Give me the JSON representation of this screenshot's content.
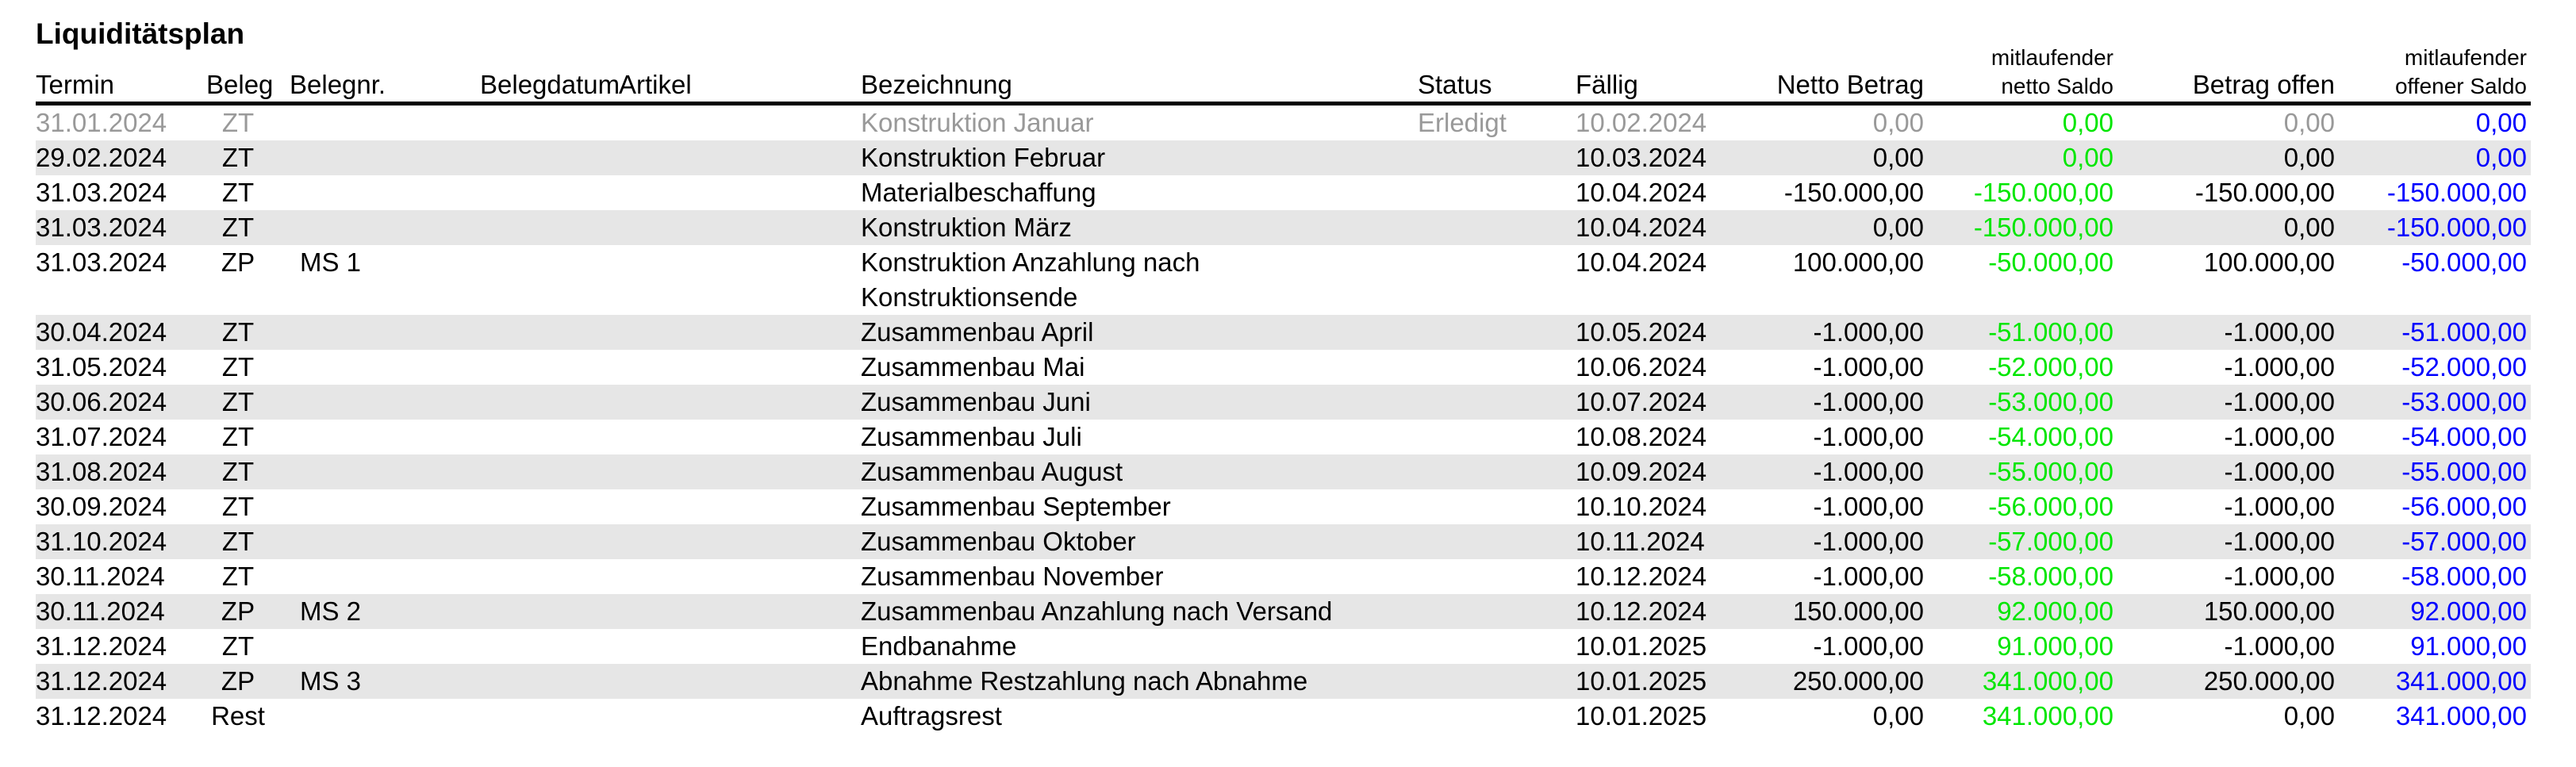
{
  "title": "Liquiditätsplan",
  "colors": {
    "running_net_balance": "#00e600",
    "running_open_balance": "#0000ff",
    "completed_row": "#999999",
    "alt_row_bg": "#e6e6e6"
  },
  "columns": {
    "termin": "Termin",
    "beleg": "Beleg",
    "belegnr": "Belegnr.",
    "belegdatum": "Belegdatum",
    "artikel": "Artikel",
    "bezeichnung": "Bezeichnung",
    "status": "Status",
    "faellig": "Fällig",
    "netto_betrag": "Netto Betrag",
    "netto_saldo_1": "mitlaufender",
    "netto_saldo_2": "netto Saldo",
    "betrag_offen": "Betrag offen",
    "offener_saldo_1": "mitlaufender",
    "offener_saldo_2": "offener Saldo"
  },
  "rows": [
    {
      "termin": "31.01.2024",
      "beleg": "ZT",
      "belegnr": "",
      "bezeichnung": "Konstruktion Januar",
      "status": "Erledigt",
      "faellig": "10.02.2024",
      "netto": "0,00",
      "netto_saldo": "0,00",
      "offen": "0,00",
      "offen_saldo": "0,00"
    },
    {
      "termin": "29.02.2024",
      "beleg": "ZT",
      "belegnr": "",
      "bezeichnung": "Konstruktion Februar",
      "status": "",
      "faellig": "10.03.2024",
      "netto": "0,00",
      "netto_saldo": "0,00",
      "offen": "0,00",
      "offen_saldo": "0,00"
    },
    {
      "termin": "31.03.2024",
      "beleg": "ZT",
      "belegnr": "",
      "bezeichnung": "Materialbeschaffung",
      "status": "",
      "faellig": "10.04.2024",
      "netto": "-150.000,00",
      "netto_saldo": "-150.000,00",
      "offen": "-150.000,00",
      "offen_saldo": "-150.000,00"
    },
    {
      "termin": "31.03.2024",
      "beleg": "ZT",
      "belegnr": "",
      "bezeichnung": "Konstruktion März",
      "status": "",
      "faellig": "10.04.2024",
      "netto": "0,00",
      "netto_saldo": "-150.000,00",
      "offen": "0,00",
      "offen_saldo": "-150.000,00"
    },
    {
      "termin": "31.03.2024",
      "beleg": "ZP",
      "belegnr": "MS 1",
      "bezeichnung": "Konstruktion Anzahlung nach Konstruktionsende",
      "status": "",
      "faellig": "10.04.2024",
      "netto": "100.000,00",
      "netto_saldo": "-50.000,00",
      "offen": "100.000,00",
      "offen_saldo": "-50.000,00"
    },
    {
      "termin": "30.04.2024",
      "beleg": "ZT",
      "belegnr": "",
      "bezeichnung": "Zusammenbau April",
      "status": "",
      "faellig": "10.05.2024",
      "netto": "-1.000,00",
      "netto_saldo": "-51.000,00",
      "offen": "-1.000,00",
      "offen_saldo": "-51.000,00"
    },
    {
      "termin": "31.05.2024",
      "beleg": "ZT",
      "belegnr": "",
      "bezeichnung": "Zusammenbau Mai",
      "status": "",
      "faellig": "10.06.2024",
      "netto": "-1.000,00",
      "netto_saldo": "-52.000,00",
      "offen": "-1.000,00",
      "offen_saldo": "-52.000,00"
    },
    {
      "termin": "30.06.2024",
      "beleg": "ZT",
      "belegnr": "",
      "bezeichnung": "Zusammenbau Juni",
      "status": "",
      "faellig": "10.07.2024",
      "netto": "-1.000,00",
      "netto_saldo": "-53.000,00",
      "offen": "-1.000,00",
      "offen_saldo": "-53.000,00"
    },
    {
      "termin": "31.07.2024",
      "beleg": "ZT",
      "belegnr": "",
      "bezeichnung": "Zusammenbau Juli",
      "status": "",
      "faellig": "10.08.2024",
      "netto": "-1.000,00",
      "netto_saldo": "-54.000,00",
      "offen": "-1.000,00",
      "offen_saldo": "-54.000,00"
    },
    {
      "termin": "31.08.2024",
      "beleg": "ZT",
      "belegnr": "",
      "bezeichnung": "Zusammenbau August",
      "status": "",
      "faellig": "10.09.2024",
      "netto": "-1.000,00",
      "netto_saldo": "-55.000,00",
      "offen": "-1.000,00",
      "offen_saldo": "-55.000,00"
    },
    {
      "termin": "30.09.2024",
      "beleg": "ZT",
      "belegnr": "",
      "bezeichnung": "Zusammenbau September",
      "status": "",
      "faellig": "10.10.2024",
      "netto": "-1.000,00",
      "netto_saldo": "-56.000,00",
      "offen": "-1.000,00",
      "offen_saldo": "-56.000,00"
    },
    {
      "termin": "31.10.2024",
      "beleg": "ZT",
      "belegnr": "",
      "bezeichnung": "Zusammenbau Oktober",
      "status": "",
      "faellig": "10.11.2024",
      "netto": "-1.000,00",
      "netto_saldo": "-57.000,00",
      "offen": "-1.000,00",
      "offen_saldo": "-57.000,00"
    },
    {
      "termin": "30.11.2024",
      "beleg": "ZT",
      "belegnr": "",
      "bezeichnung": "Zusammenbau November",
      "status": "",
      "faellig": "10.12.2024",
      "netto": "-1.000,00",
      "netto_saldo": "-58.000,00",
      "offen": "-1.000,00",
      "offen_saldo": "-58.000,00"
    },
    {
      "termin": "30.11.2024",
      "beleg": "ZP",
      "belegnr": "MS 2",
      "bezeichnung": "Zusammenbau Anzahlung nach Versand",
      "status": "",
      "faellig": "10.12.2024",
      "netto": "150.000,00",
      "netto_saldo": "92.000,00",
      "offen": "150.000,00",
      "offen_saldo": "92.000,00"
    },
    {
      "termin": "31.12.2024",
      "beleg": "ZT",
      "belegnr": "",
      "bezeichnung": "Endbanahme",
      "status": "",
      "faellig": "10.01.2025",
      "netto": "-1.000,00",
      "netto_saldo": "91.000,00",
      "offen": "-1.000,00",
      "offen_saldo": "91.000,00"
    },
    {
      "termin": "31.12.2024",
      "beleg": "ZP",
      "belegnr": "MS 3",
      "bezeichnung": "Abnahme Restzahlung nach Abnahme",
      "status": "",
      "faellig": "10.01.2025",
      "netto": "250.000,00",
      "netto_saldo": "341.000,00",
      "offen": "250.000,00",
      "offen_saldo": "341.000,00"
    },
    {
      "termin": "31.12.2024",
      "beleg": "Rest",
      "belegnr": "",
      "bezeichnung": "Auftragsrest",
      "status": "",
      "faellig": "10.01.2025",
      "netto": "0,00",
      "netto_saldo": "341.000,00",
      "offen": "0,00",
      "offen_saldo": "341.000,00"
    }
  ]
}
